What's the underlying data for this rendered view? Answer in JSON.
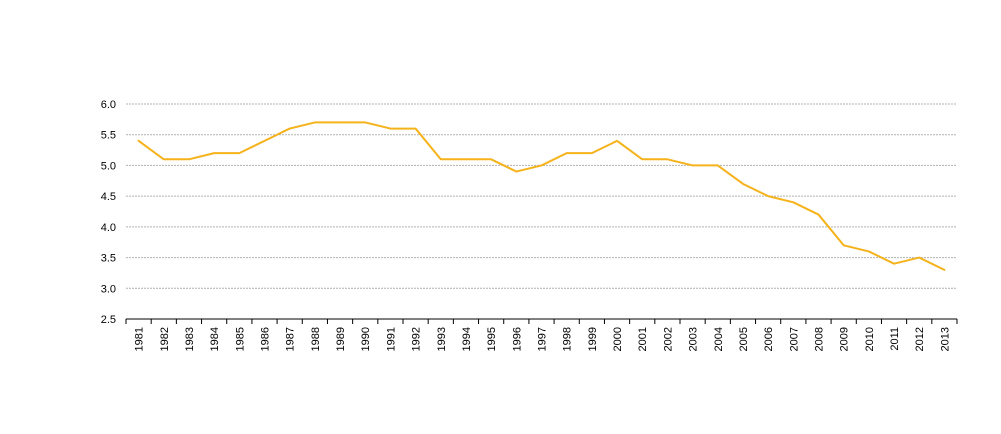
{
  "chart_data": {
    "type": "line",
    "title": "",
    "xlabel": "",
    "ylabel": "",
    "categories": [
      "1981",
      "1982",
      "1983",
      "1984",
      "1985",
      "1986",
      "1987",
      "1988",
      "1989",
      "1990",
      "1991",
      "1992",
      "1993",
      "1994",
      "1995",
      "1996",
      "1997",
      "1998",
      "1999",
      "2000",
      "2001",
      "2002",
      "2003",
      "2004",
      "2005",
      "2006",
      "2007",
      "2008",
      "2009",
      "2010",
      "2011",
      "2012",
      "2013"
    ],
    "series": [
      {
        "values": [
          5.4,
          5.1,
          5.1,
          5.2,
          5.2,
          5.4,
          5.6,
          5.7,
          5.7,
          5.7,
          5.6,
          5.6,
          5.1,
          5.1,
          5.1,
          4.9,
          5.0,
          5.2,
          5.2,
          5.4,
          5.1,
          5.1,
          5.0,
          5.0,
          4.7,
          4.5,
          4.4,
          4.2,
          3.7,
          3.6,
          3.4,
          3.5,
          3.3
        ],
        "color": "#f5b21b"
      }
    ],
    "ylim": [
      2.5,
      6.0
    ],
    "yticks": [
      "2.5",
      "3.0",
      "3.5",
      "4.0",
      "4.5",
      "5.0",
      "5.5",
      "6.0"
    ],
    "grid": true,
    "gridline_color": "#b0b0b0",
    "legend": "none"
  }
}
